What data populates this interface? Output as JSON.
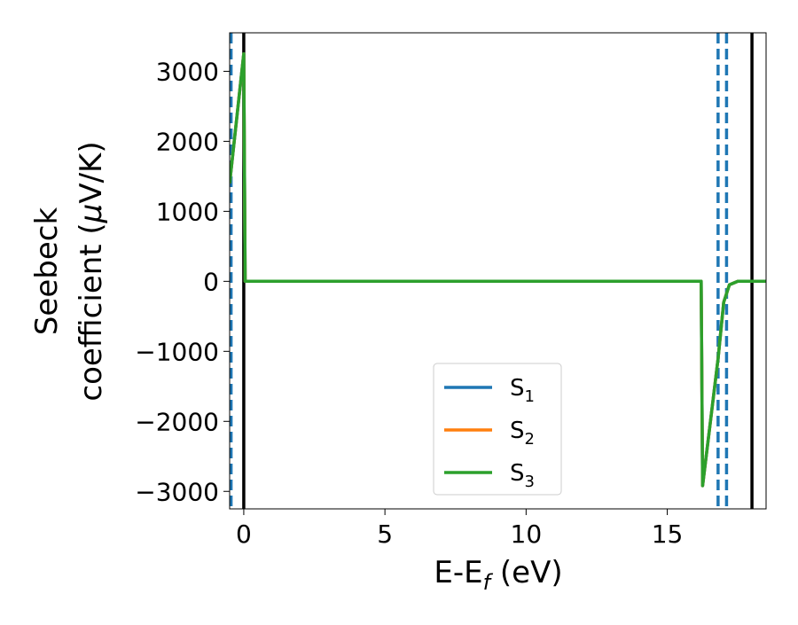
{
  "chart_data": {
    "type": "line",
    "title": "",
    "xlabel": "E-E",
    "xlabel_sub": "f",
    "xlabel_unit": " (eV)",
    "ylabel_line1": "Seebeck",
    "ylabel_line2_prefix": "coefficient  (",
    "ylabel_mu": "μ",
    "ylabel_line2_suffix": "V/K)",
    "xlim": [
      -0.5,
      18.5
    ],
    "ylim": [
      -3250,
      3550
    ],
    "xticks": [
      0,
      5,
      10,
      15
    ],
    "xtick_labels": [
      "0",
      "5",
      "10",
      "15"
    ],
    "yticks": [
      3000,
      2000,
      1000,
      0,
      -1000,
      -2000,
      -3000
    ],
    "ytick_labels": [
      "3000",
      "2000",
      "1000",
      "0",
      "−1000",
      "−2000",
      "−3000"
    ],
    "grid": false,
    "legend_position": "lower-center",
    "series": [
      {
        "name": "S",
        "sub": "1",
        "color": "#1f77b4",
        "x": [
          -0.5,
          0.0,
          0.05,
          16.2,
          16.25,
          16.5,
          16.8,
          17.0,
          17.2,
          17.5,
          18.0,
          18.5
        ],
        "y": [
          1400,
          3250,
          0,
          0,
          -2920,
          -2100,
          -1100,
          -300,
          -50,
          0,
          0,
          0
        ]
      },
      {
        "name": "S",
        "sub": "2",
        "color": "#ff7f0e",
        "x": [
          -0.5,
          0.0,
          0.05,
          16.2,
          16.25,
          16.5,
          16.8,
          17.0,
          17.2,
          17.5,
          18.0,
          18.5
        ],
        "y": [
          1400,
          3250,
          0,
          0,
          -2920,
          -2100,
          -1100,
          -300,
          -50,
          0,
          0,
          0
        ]
      },
      {
        "name": "S",
        "sub": "3",
        "color": "#2ca02c",
        "x": [
          -0.5,
          0.0,
          0.05,
          16.2,
          16.25,
          16.5,
          16.8,
          17.0,
          17.2,
          17.5,
          18.0,
          18.5
        ],
        "y": [
          1400,
          3250,
          0,
          0,
          -2920,
          -2100,
          -1100,
          -300,
          -50,
          0,
          0,
          0
        ]
      }
    ],
    "vlines": [
      {
        "x": -0.45,
        "color": "#1f77b4",
        "style": "dashed"
      },
      {
        "x": 0.0,
        "color": "#000000",
        "style": "solid"
      },
      {
        "x": 16.8,
        "color": "#1f77b4",
        "style": "dashed"
      },
      {
        "x": 17.1,
        "color": "#1f77b4",
        "style": "dashed"
      },
      {
        "x": 18.0,
        "color": "#000000",
        "style": "solid"
      }
    ]
  }
}
